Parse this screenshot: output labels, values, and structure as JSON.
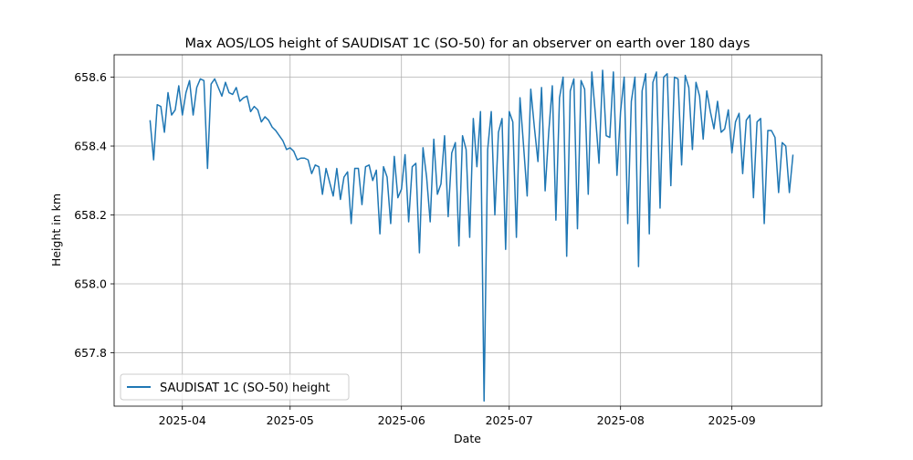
{
  "chart_data": {
    "type": "line",
    "title": "Max AOS/LOS height of SAUDISAT 1C (SO-50) for an observer on earth over 180 days",
    "xlabel": "Date",
    "ylabel": "Height in km",
    "x_ticks": [
      "2025-04",
      "2025-05",
      "2025-06",
      "2025-07",
      "2025-08",
      "2025-09"
    ],
    "y_ticks": [
      "657.8",
      "658.0",
      "658.2",
      "658.4",
      "658.6"
    ],
    "xlim": [
      "2025-03-13",
      "2025-09-26"
    ],
    "ylim": [
      657.645,
      658.665
    ],
    "grid": true,
    "legend_position": "lower-left",
    "series": [
      {
        "name": "SAUDISAT 1C (SO-50) height",
        "color": "#1f77b4",
        "x": [
          "2025-03-23",
          "2025-03-24",
          "2025-03-25",
          "2025-03-26",
          "2025-03-27",
          "2025-03-28",
          "2025-03-29",
          "2025-03-30",
          "2025-03-31",
          "2025-04-01",
          "2025-04-02",
          "2025-04-03",
          "2025-04-04",
          "2025-04-05",
          "2025-04-06",
          "2025-04-07",
          "2025-04-08",
          "2025-04-09",
          "2025-04-10",
          "2025-04-11",
          "2025-04-12",
          "2025-04-13",
          "2025-04-14",
          "2025-04-15",
          "2025-04-16",
          "2025-04-17",
          "2025-04-18",
          "2025-04-19",
          "2025-04-20",
          "2025-04-21",
          "2025-04-22",
          "2025-04-23",
          "2025-04-24",
          "2025-04-25",
          "2025-04-26",
          "2025-04-27",
          "2025-04-28",
          "2025-04-29",
          "2025-04-30",
          "2025-05-01",
          "2025-05-02",
          "2025-05-03",
          "2025-05-04",
          "2025-05-05",
          "2025-05-06",
          "2025-05-07",
          "2025-05-08",
          "2025-05-09",
          "2025-05-10",
          "2025-05-11",
          "2025-05-12",
          "2025-05-13",
          "2025-05-14",
          "2025-05-15",
          "2025-05-16",
          "2025-05-17",
          "2025-05-18",
          "2025-05-19",
          "2025-05-20",
          "2025-05-21",
          "2025-05-22",
          "2025-05-23",
          "2025-05-24",
          "2025-05-25",
          "2025-05-26",
          "2025-05-27",
          "2025-05-28",
          "2025-05-29",
          "2025-05-30",
          "2025-05-31",
          "2025-06-01",
          "2025-06-02",
          "2025-06-03",
          "2025-06-04",
          "2025-06-05",
          "2025-06-06",
          "2025-06-07",
          "2025-06-08",
          "2025-06-09",
          "2025-06-10",
          "2025-06-11",
          "2025-06-12",
          "2025-06-13",
          "2025-06-14",
          "2025-06-15",
          "2025-06-16",
          "2025-06-17",
          "2025-06-18",
          "2025-06-19",
          "2025-06-20",
          "2025-06-21",
          "2025-06-22",
          "2025-06-23",
          "2025-06-24",
          "2025-06-25",
          "2025-06-26",
          "2025-06-27",
          "2025-06-28",
          "2025-06-29",
          "2025-06-30",
          "2025-07-01",
          "2025-07-02",
          "2025-07-03",
          "2025-07-04",
          "2025-07-05",
          "2025-07-06",
          "2025-07-07",
          "2025-07-08",
          "2025-07-09",
          "2025-07-10",
          "2025-07-11",
          "2025-07-12",
          "2025-07-13",
          "2025-07-14",
          "2025-07-15",
          "2025-07-16",
          "2025-07-17",
          "2025-07-18",
          "2025-07-19",
          "2025-07-20",
          "2025-07-21",
          "2025-07-22",
          "2025-07-23",
          "2025-07-24",
          "2025-07-25",
          "2025-07-26",
          "2025-07-27",
          "2025-07-28",
          "2025-07-29",
          "2025-07-30",
          "2025-07-31",
          "2025-08-01",
          "2025-08-02",
          "2025-08-03",
          "2025-08-04",
          "2025-08-05",
          "2025-08-06",
          "2025-08-07",
          "2025-08-08",
          "2025-08-09",
          "2025-08-10",
          "2025-08-11",
          "2025-08-12",
          "2025-08-13",
          "2025-08-14",
          "2025-08-15",
          "2025-08-16",
          "2025-08-17",
          "2025-08-18",
          "2025-08-19",
          "2025-08-20",
          "2025-08-21",
          "2025-08-22",
          "2025-08-23",
          "2025-08-24",
          "2025-08-25",
          "2025-08-26",
          "2025-08-27",
          "2025-08-28",
          "2025-08-29",
          "2025-08-30",
          "2025-08-31",
          "2025-09-01",
          "2025-09-02",
          "2025-09-03",
          "2025-09-04",
          "2025-09-05",
          "2025-09-06",
          "2025-09-07",
          "2025-09-08",
          "2025-09-09",
          "2025-09-10",
          "2025-09-11",
          "2025-09-12",
          "2025-09-13",
          "2025-09-14",
          "2025-09-15",
          "2025-09-16",
          "2025-09-17",
          "2025-09-18"
        ],
        "y": [
          658.475,
          658.36,
          658.52,
          658.515,
          658.44,
          658.555,
          658.49,
          658.505,
          658.575,
          658.49,
          658.555,
          658.59,
          658.49,
          658.57,
          658.595,
          658.59,
          658.335,
          658.58,
          658.595,
          658.57,
          658.545,
          658.585,
          658.555,
          658.55,
          658.57,
          658.53,
          658.54,
          658.545,
          658.5,
          658.515,
          658.505,
          658.47,
          658.485,
          658.475,
          658.455,
          658.445,
          658.43,
          658.415,
          658.39,
          658.395,
          658.385,
          658.36,
          658.365,
          658.365,
          658.36,
          658.32,
          658.345,
          658.34,
          658.26,
          658.335,
          658.295,
          658.255,
          658.335,
          658.245,
          658.31,
          658.325,
          658.175,
          658.335,
          658.335,
          658.23,
          658.34,
          658.345,
          658.3,
          658.33,
          658.145,
          658.34,
          658.31,
          658.175,
          658.37,
          658.25,
          658.275,
          658.375,
          658.18,
          658.34,
          658.35,
          658.09,
          658.395,
          658.31,
          658.18,
          658.42,
          658.26,
          658.29,
          658.43,
          658.195,
          658.38,
          658.41,
          658.11,
          658.43,
          658.39,
          658.135,
          658.48,
          658.34,
          658.5,
          657.66,
          658.39,
          658.5,
          658.2,
          658.44,
          658.48,
          658.1,
          658.5,
          658.47,
          658.135,
          658.54,
          658.4,
          658.255,
          658.565,
          658.455,
          658.355,
          658.57,
          658.27,
          658.44,
          658.575,
          658.185,
          658.54,
          658.6,
          658.08,
          658.56,
          658.595,
          658.16,
          658.59,
          658.565,
          658.26,
          658.615,
          658.49,
          658.35,
          658.62,
          658.43,
          658.425,
          658.615,
          658.315,
          658.5,
          658.6,
          658.175,
          658.53,
          658.6,
          658.05,
          658.56,
          658.61,
          658.145,
          658.585,
          658.615,
          658.22,
          658.6,
          658.61,
          658.285,
          658.6,
          658.595,
          658.345,
          658.605,
          658.57,
          658.39,
          658.585,
          658.545,
          658.42,
          658.56,
          658.5,
          658.45,
          658.53,
          658.44,
          658.45,
          658.505,
          658.38,
          658.47,
          658.495,
          658.32,
          658.475,
          658.49,
          658.25,
          658.47,
          658.48,
          658.175,
          658.445,
          658.445,
          658.425,
          658.265,
          658.41,
          658.4,
          658.265,
          658.375
        ]
      }
    ]
  }
}
